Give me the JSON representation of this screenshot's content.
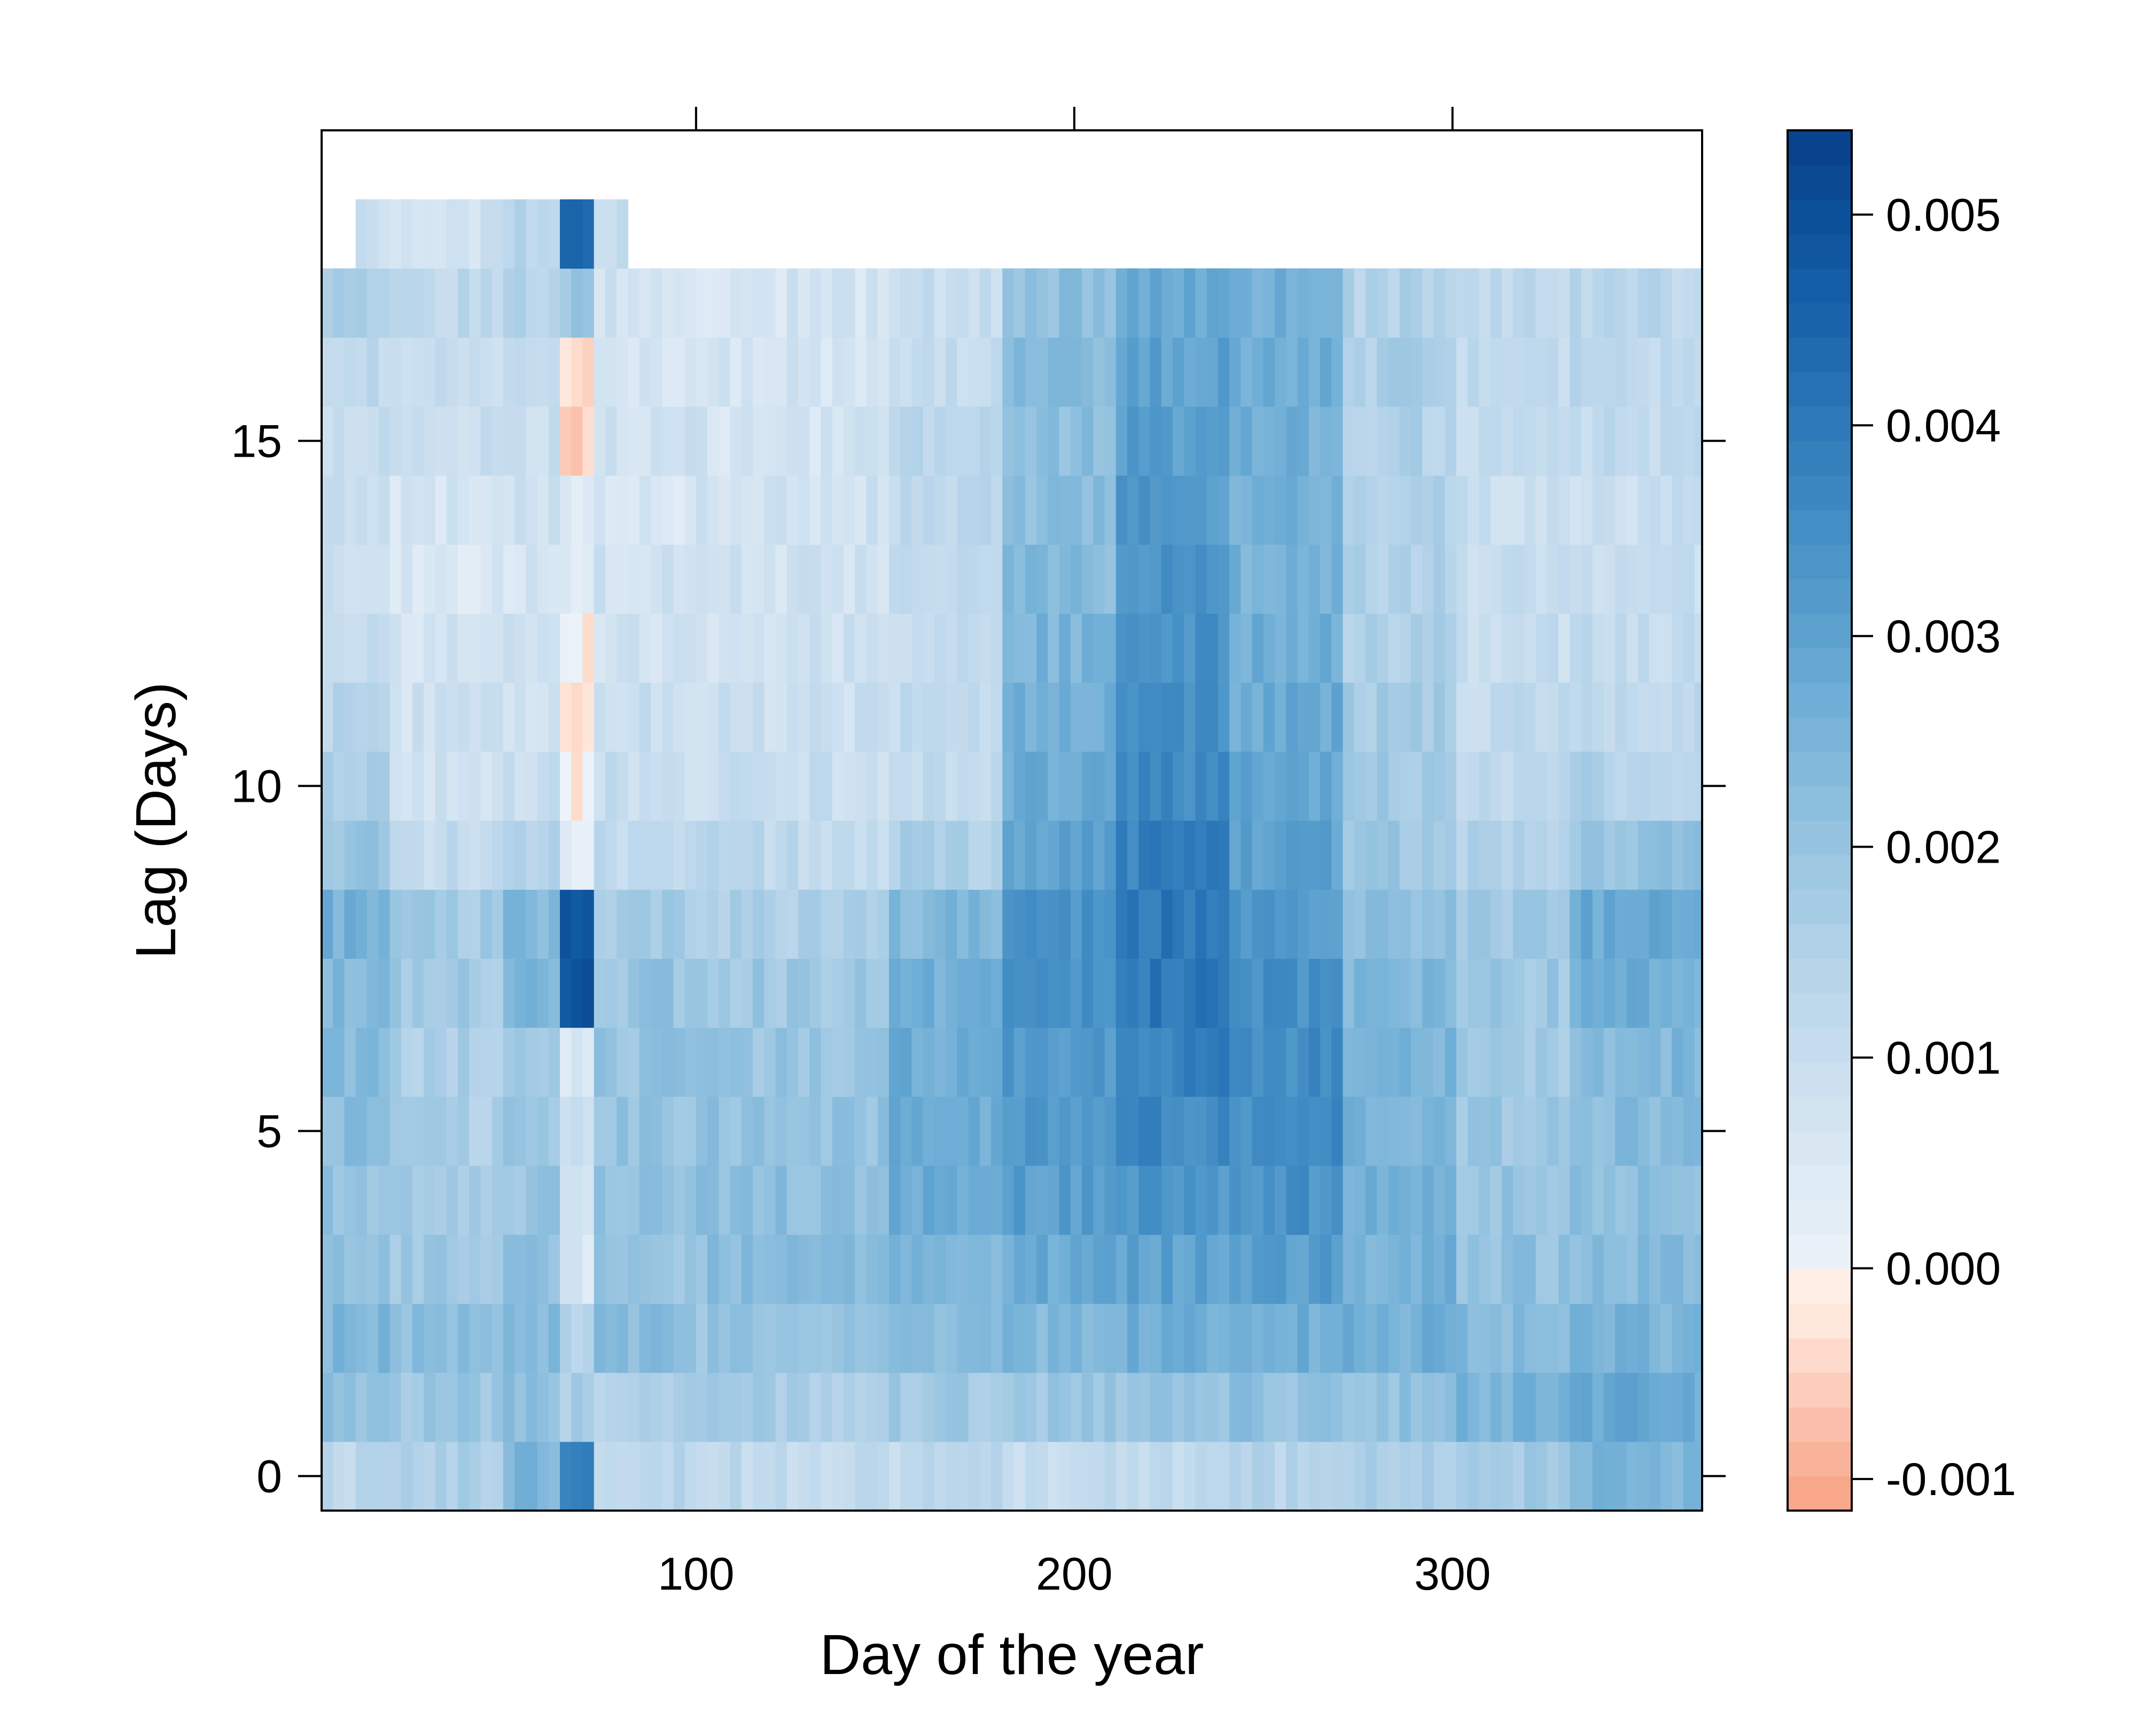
{
  "chart_data": {
    "type": "heatmap",
    "xlabel": "Day of the year",
    "ylabel": "Lag (Days)",
    "xlim": [
      1,
      366
    ],
    "ylim": [
      -0.5,
      19.5
    ],
    "x_ticks": [
      100,
      200,
      300
    ],
    "x_tick_labels": [
      "100",
      "200",
      "300"
    ],
    "y_ticks": [
      0,
      5,
      10,
      15
    ],
    "y_tick_labels": [
      "0",
      "5",
      "10",
      "15"
    ],
    "lags": [
      0,
      1,
      2,
      3,
      4,
      5,
      6,
      7,
      8,
      9,
      10,
      11,
      12,
      13,
      14,
      15,
      16,
      17,
      18
    ],
    "lag18_day_range": [
      11,
      81
    ],
    "missing": "no values for lag 19 at any day, or for lag 18 after about day 81",
    "colorbar": {
      "ticks": [
        -0.001,
        0,
        0.001,
        0.002,
        0.003,
        0.004,
        0.005
      ],
      "tick_labels": [
        "-0.001",
        "0.000",
        "0.001",
        "0.002",
        "0.003",
        "0.004",
        "0.005"
      ],
      "min": -0.00115,
      "max": 0.0054,
      "negative_colors": [
        "#f7a182",
        "#f9b29a",
        "#fbc4b0",
        "#fdd7c6",
        "#fee8dd",
        "#fff2ec"
      ],
      "positive_colors": [
        "#edf3fa",
        "#d5e5f2",
        "#bad6eb",
        "#97c4e0",
        "#6faed6",
        "#4a94c8",
        "#2b77b8",
        "#115ba4",
        "#08408a"
      ]
    },
    "values_estimated_by_day_band_and_lag": [
      {
        "days": [
          1,
          20
        ],
        "v": [
          0.0012,
          0.0022,
          0.0024,
          0.0022,
          0.0021,
          0.0022,
          0.0023,
          0.0024,
          0.0026,
          0.002,
          0.0016,
          0.0014,
          0.0012,
          0.001,
          0.0011,
          0.0011,
          0.0012,
          0.0015,
          0.001
        ]
      },
      {
        "days": [
          20,
          50
        ],
        "v": [
          0.0016,
          0.0019,
          0.0022,
          0.0019,
          0.0017,
          0.0016,
          0.0016,
          0.0018,
          0.0018,
          0.0011,
          0.0008,
          0.0008,
          0.0007,
          0.0006,
          0.0007,
          0.0009,
          0.001,
          0.0012,
          0.0008
        ]
      },
      {
        "days": [
          50,
          65
        ],
        "v": [
          0.0025,
          0.0021,
          0.0023,
          0.0022,
          0.002,
          0.0019,
          0.0018,
          0.0024,
          0.0024,
          0.0014,
          0.001,
          0.0009,
          0.0008,
          0.0007,
          0.0008,
          0.001,
          0.0012,
          0.0014,
          0.0014
        ]
      },
      {
        "days": [
          65,
          72
        ],
        "v": [
          0.004,
          0.0016,
          0.0014,
          0.0006,
          0.0006,
          0.0008,
          0.0006,
          0.005,
          0.005,
          0.0004,
          -0.0002,
          -0.0004,
          -0.0002,
          0.0004,
          0.0004,
          -0.0005,
          -0.0004,
          0.002,
          0.0045
        ]
      },
      {
        "days": [
          72,
          100
        ],
        "v": [
          0.0014,
          0.0016,
          0.0022,
          0.002,
          0.0021,
          0.002,
          0.002,
          0.002,
          0.0018,
          0.0012,
          0.001,
          0.001,
          0.0008,
          0.0008,
          0.0006,
          0.0008,
          0.0006,
          0.0008,
          0.0012
        ]
      },
      {
        "days": [
          100,
          150
        ],
        "v": [
          0.0012,
          0.0017,
          0.002,
          0.0022,
          0.0022,
          0.0021,
          0.002,
          0.0019,
          0.0016,
          0.0012,
          0.001,
          0.0009,
          0.0008,
          0.0008,
          0.0008,
          0.0007,
          0.0007,
          0.0007
        ]
      },
      {
        "days": [
          150,
          180
        ],
        "v": [
          0.0012,
          0.0018,
          0.0022,
          0.0025,
          0.0027,
          0.0027,
          0.0027,
          0.0026,
          0.0024,
          0.0016,
          0.0012,
          0.0011,
          0.0011,
          0.0011,
          0.0012,
          0.0012,
          0.0011,
          0.001
        ]
      },
      {
        "days": [
          180,
          210
        ],
        "v": [
          0.0011,
          0.0019,
          0.0024,
          0.0028,
          0.0031,
          0.0032,
          0.0033,
          0.0034,
          0.0034,
          0.003,
          0.0028,
          0.0027,
          0.0025,
          0.0023,
          0.0022,
          0.0022,
          0.0023,
          0.0022
        ]
      },
      {
        "days": [
          210,
          240
        ],
        "v": [
          0.0012,
          0.002,
          0.0026,
          0.003,
          0.0033,
          0.0036,
          0.0038,
          0.004,
          0.004,
          0.0038,
          0.0036,
          0.0035,
          0.0034,
          0.0033,
          0.0032,
          0.0031,
          0.003,
          0.0028
        ]
      },
      {
        "days": [
          240,
          270
        ],
        "v": [
          0.0014,
          0.0021,
          0.0027,
          0.0031,
          0.0034,
          0.0035,
          0.0035,
          0.0034,
          0.0032,
          0.003,
          0.0029,
          0.0028,
          0.0027,
          0.0026,
          0.0026,
          0.0026,
          0.0027,
          0.0026
        ]
      },
      {
        "days": [
          270,
          300
        ],
        "v": [
          0.0016,
          0.0021,
          0.0026,
          0.0026,
          0.0027,
          0.0026,
          0.0025,
          0.0024,
          0.0022,
          0.0019,
          0.0018,
          0.0017,
          0.0016,
          0.0015,
          0.0015,
          0.0015,
          0.0016,
          0.0015
        ]
      },
      {
        "days": [
          300,
          330
        ],
        "v": [
          0.0018,
          0.0025,
          0.0023,
          0.0021,
          0.002,
          0.0019,
          0.0018,
          0.0019,
          0.0018,
          0.0015,
          0.0012,
          0.0011,
          0.001,
          0.001,
          0.001,
          0.0011,
          0.0012,
          0.0012
        ]
      },
      {
        "days": [
          330,
          366
        ],
        "v": [
          0.0024,
          0.0028,
          0.0025,
          0.0023,
          0.0022,
          0.0023,
          0.0024,
          0.0027,
          0.0028,
          0.002,
          0.0015,
          0.0013,
          0.0011,
          0.001,
          0.001,
          0.0011,
          0.0012,
          0.0013
        ]
      }
    ]
  }
}
